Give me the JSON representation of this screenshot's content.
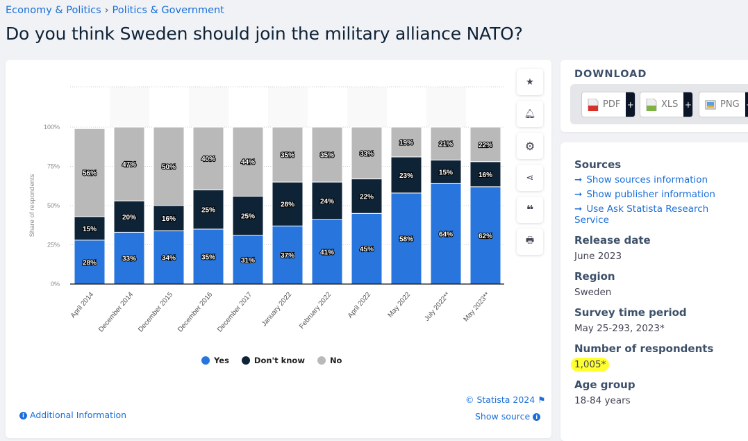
{
  "breadcrumb": [
    "Economy & Politics",
    "Politics & Government"
  ],
  "title": "Do you think Sweden should join the military alliance NATO?",
  "chart_data": {
    "type": "bar",
    "stacked": true,
    "categories": [
      "April 2014",
      "December 2014",
      "December 2015",
      "December 2016",
      "December 2017",
      "January 2022",
      "February 2022",
      "April 2022",
      "May 2022",
      "July 2022**",
      "May 2023**"
    ],
    "series": [
      {
        "name": "Yes",
        "color": "#2876dd",
        "values": [
          28,
          33,
          34,
          35,
          31,
          37,
          41,
          45,
          58,
          64,
          62
        ]
      },
      {
        "name": "Don't know",
        "color": "#0f2337",
        "values": [
          15,
          20,
          16,
          25,
          25,
          28,
          24,
          22,
          23,
          15,
          16
        ]
      },
      {
        "name": "No",
        "color": "#b9b9b9",
        "values": [
          56,
          47,
          50,
          40,
          44,
          35,
          35,
          33,
          19,
          21,
          22
        ]
      }
    ],
    "ylabel": "Share of respondents",
    "yticks": [
      "0%",
      "25%",
      "50%",
      "75%",
      "100%"
    ],
    "ylim": [
      0,
      100
    ],
    "grid": true,
    "legend": "bottom"
  },
  "footer": {
    "credit": "© Statista 2024",
    "show_source": "Show source",
    "additional": "Additional Information"
  },
  "download": {
    "title": "DOWNLOAD",
    "buttons": [
      "PDF",
      "XLS",
      "PNG"
    ],
    "plus": "+"
  },
  "meta": {
    "sources_title": "Sources",
    "links": [
      "Show sources information",
      "Show publisher information",
      "Use Ask Statista Research Service"
    ],
    "release_label": "Release date",
    "release": "June 2023",
    "region_label": "Region",
    "region": "Sweden",
    "period_label": "Survey time period",
    "period": "May 25-293, 2023*",
    "respondents_label": "Number of respondents",
    "respondents": "1,005*",
    "age_label": "Age group",
    "age": "18-84 years"
  }
}
